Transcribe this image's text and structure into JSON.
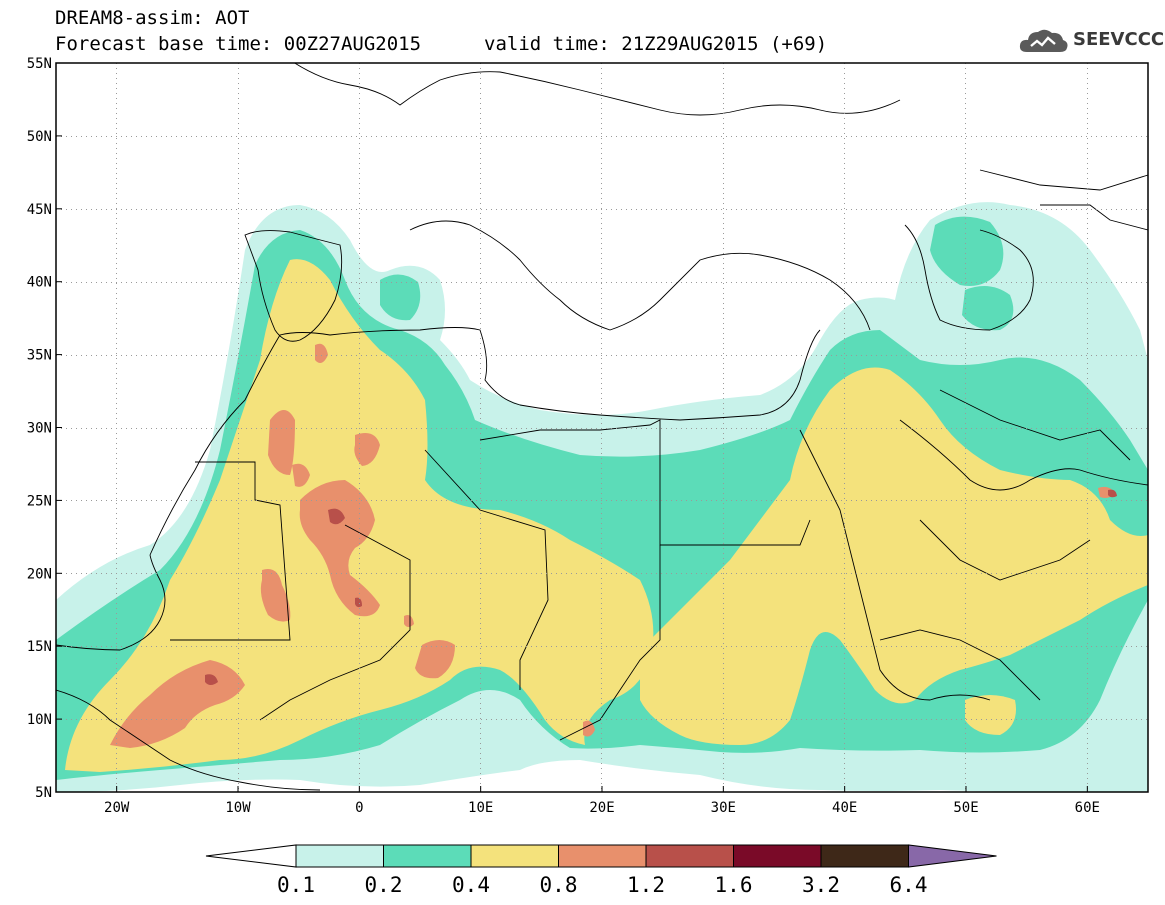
{
  "title": {
    "line1": "DREAM8-assim: AOT",
    "base_time": "Forecast base time: 00Z27AUG2015",
    "valid_time": "valid time: 21Z29AUG2015 (+69)"
  },
  "logo": {
    "text": "SEEVCCC",
    "icon": "cloud-logo-icon"
  },
  "map": {
    "lat_labels": [
      "55N",
      "50N",
      "45N",
      "40N",
      "35N",
      "30N",
      "25N",
      "20N",
      "15N",
      "10N",
      "5N"
    ],
    "lon_labels": [
      "20W",
      "10W",
      "0",
      "10E",
      "20E",
      "30E",
      "40E",
      "50E",
      "60E"
    ],
    "lat_range": [
      5,
      55
    ],
    "lon_range": [
      -25,
      65
    ],
    "grid": "dotted"
  },
  "colorbar": {
    "levels": [
      "0.1",
      "0.2",
      "0.4",
      "0.8",
      "1.2",
      "1.6",
      "3.2",
      "6.4"
    ],
    "colors": [
      "#ffffff",
      "#c8f2ea",
      "#5cdcb8",
      "#f4e27c",
      "#e8906c",
      "#b8504a",
      "#7a0a28",
      "#3e2818",
      "#8868a8"
    ]
  }
}
